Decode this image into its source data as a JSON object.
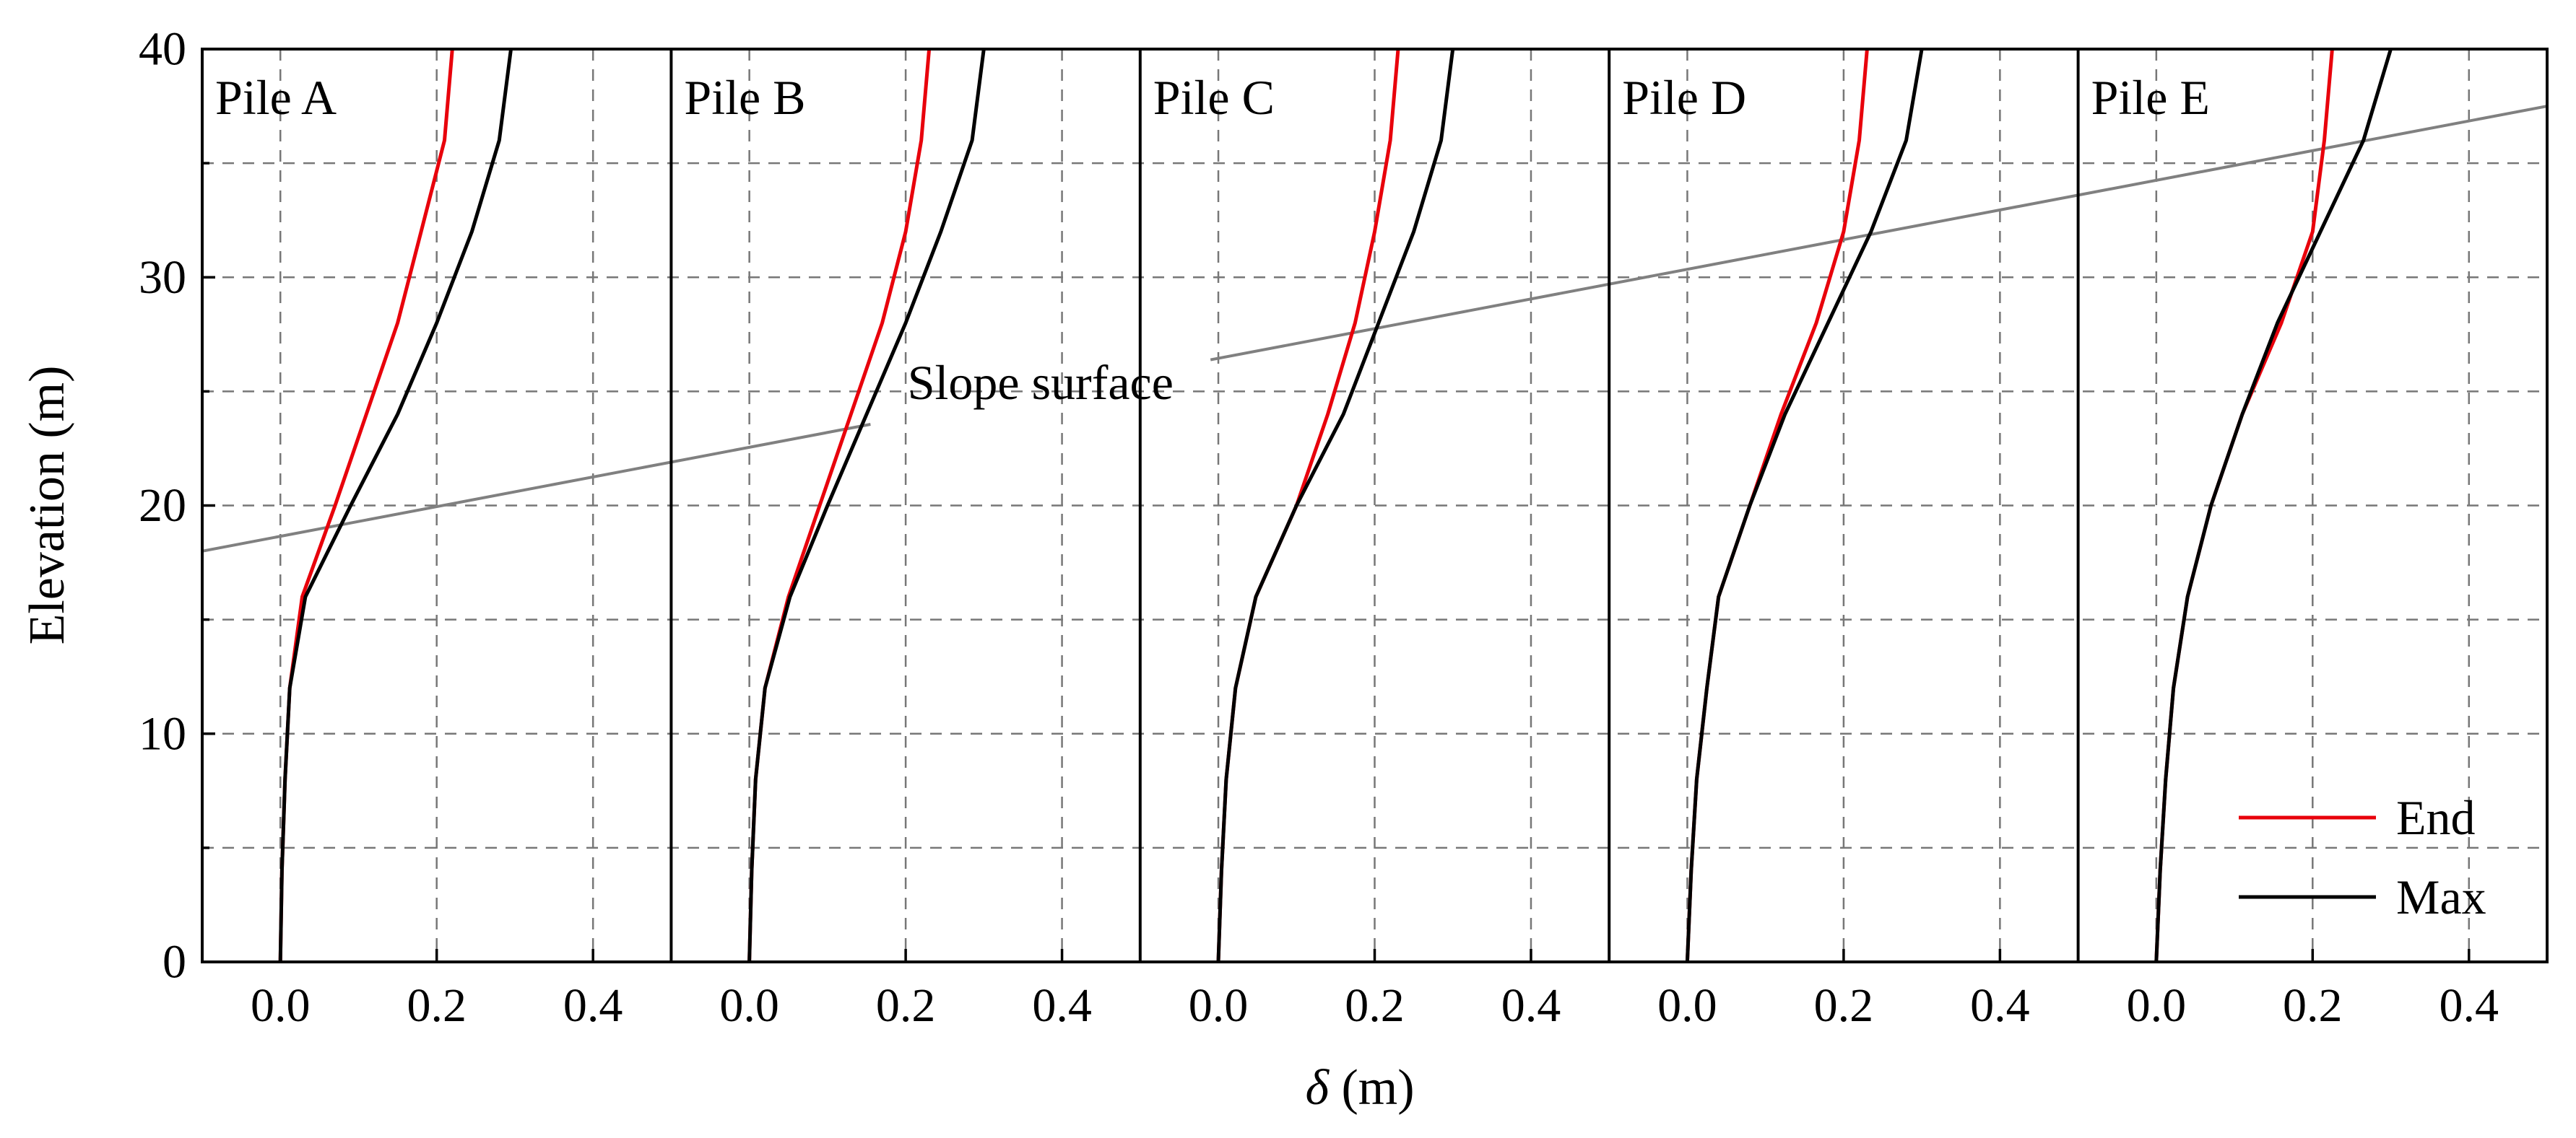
{
  "chart_data": {
    "type": "line",
    "xlabel_symbol": "δ",
    "xlabel_unit": " (m)",
    "ylabel": "Elevation (m)",
    "xlim": [
      -0.1,
      0.5
    ],
    "ylim": [
      0,
      40
    ],
    "xticks": [
      0.0,
      0.2,
      0.4
    ],
    "xtick_labels": [
      "0.0",
      "0.2",
      "0.4"
    ],
    "yticks": [
      0,
      10,
      20,
      30,
      40
    ],
    "ytick_labels": [
      "0",
      "10",
      "20",
      "30",
      "40"
    ],
    "ygrid": [
      5,
      10,
      15,
      20,
      25,
      30,
      35
    ],
    "grid": true,
    "legend": {
      "placement": "bottom-right",
      "entries": [
        {
          "name": "End",
          "color": "#e8000b"
        },
        {
          "name": "Max",
          "color": "#000000"
        }
      ]
    },
    "slope_surface": {
      "label": "Slope surface",
      "color": "#808080",
      "points": [
        [
          -0.1,
          18.0
        ],
        [
          2.9,
          37.5
        ]
      ],
      "label_gap_x": [
        0.755,
        1.19
      ]
    },
    "panels": [
      {
        "title": "Pile A",
        "series": [
          {
            "name": "End",
            "color": "#e8000b",
            "points": [
              [
                0.0,
                0
              ],
              [
                0.002,
                4
              ],
              [
                0.006,
                8
              ],
              [
                0.012,
                12
              ],
              [
                0.028,
                16
              ],
              [
                0.07,
                20
              ],
              [
                0.11,
                24
              ],
              [
                0.15,
                28
              ],
              [
                0.18,
                32
              ],
              [
                0.21,
                36
              ],
              [
                0.22,
                40
              ]
            ]
          },
          {
            "name": "Max",
            "color": "#000000",
            "points": [
              [
                0.0,
                0
              ],
              [
                0.002,
                4
              ],
              [
                0.006,
                8
              ],
              [
                0.012,
                12
              ],
              [
                0.032,
                16
              ],
              [
                0.09,
                20
              ],
              [
                0.15,
                24
              ],
              [
                0.2,
                28
              ],
              [
                0.245,
                32
              ],
              [
                0.28,
                36
              ],
              [
                0.295,
                40
              ]
            ]
          }
        ]
      },
      {
        "title": "Pile B",
        "series": [
          {
            "name": "End",
            "color": "#e8000b",
            "points": [
              [
                0.0,
                0
              ],
              [
                0.003,
                4
              ],
              [
                0.008,
                8
              ],
              [
                0.02,
                12
              ],
              [
                0.05,
                16
              ],
              [
                0.09,
                20
              ],
              [
                0.13,
                24
              ],
              [
                0.17,
                28
              ],
              [
                0.2,
                32
              ],
              [
                0.22,
                36
              ],
              [
                0.23,
                40
              ]
            ]
          },
          {
            "name": "Max",
            "color": "#000000",
            "points": [
              [
                0.0,
                0
              ],
              [
                0.003,
                4
              ],
              [
                0.008,
                8
              ],
              [
                0.02,
                12
              ],
              [
                0.052,
                16
              ],
              [
                0.1,
                20
              ],
              [
                0.15,
                24
              ],
              [
                0.2,
                28
              ],
              [
                0.245,
                32
              ],
              [
                0.285,
                36
              ],
              [
                0.3,
                40
              ]
            ]
          }
        ]
      },
      {
        "title": "Pile C",
        "series": [
          {
            "name": "End",
            "color": "#e8000b",
            "points": [
              [
                0.0,
                0
              ],
              [
                0.004,
                4
              ],
              [
                0.01,
                8
              ],
              [
                0.022,
                12
              ],
              [
                0.048,
                16
              ],
              [
                0.1,
                20
              ],
              [
                0.14,
                24
              ],
              [
                0.175,
                28
              ],
              [
                0.2,
                32
              ],
              [
                0.22,
                36
              ],
              [
                0.23,
                40
              ]
            ]
          },
          {
            "name": "Max",
            "color": "#000000",
            "points": [
              [
                0.0,
                0
              ],
              [
                0.004,
                4
              ],
              [
                0.01,
                8
              ],
              [
                0.022,
                12
              ],
              [
                0.048,
                16
              ],
              [
                0.1,
                20
              ],
              [
                0.16,
                24
              ],
              [
                0.205,
                28
              ],
              [
                0.25,
                32
              ],
              [
                0.285,
                36
              ],
              [
                0.3,
                40
              ]
            ]
          }
        ]
      },
      {
        "title": "Pile D",
        "series": [
          {
            "name": "End",
            "color": "#e8000b",
            "points": [
              [
                0.0,
                0
              ],
              [
                0.005,
                4
              ],
              [
                0.012,
                8
              ],
              [
                0.025,
                12
              ],
              [
                0.04,
                16
              ],
              [
                0.08,
                20
              ],
              [
                0.12,
                24
              ],
              [
                0.165,
                28
              ],
              [
                0.2,
                32
              ],
              [
                0.22,
                36
              ],
              [
                0.23,
                40
              ]
            ]
          },
          {
            "name": "Max",
            "color": "#000000",
            "points": [
              [
                0.0,
                0
              ],
              [
                0.005,
                4
              ],
              [
                0.012,
                8
              ],
              [
                0.025,
                12
              ],
              [
                0.04,
                16
              ],
              [
                0.08,
                20
              ],
              [
                0.125,
                24
              ],
              [
                0.18,
                28
              ],
              [
                0.235,
                32
              ],
              [
                0.28,
                36
              ],
              [
                0.3,
                40
              ]
            ]
          }
        ]
      },
      {
        "title": "Pile E",
        "series": [
          {
            "name": "End",
            "color": "#e8000b",
            "points": [
              [
                0.0,
                0
              ],
              [
                0.005,
                4
              ],
              [
                0.012,
                8
              ],
              [
                0.022,
                12
              ],
              [
                0.04,
                16
              ],
              [
                0.07,
                20
              ],
              [
                0.11,
                24
              ],
              [
                0.16,
                28
              ],
              [
                0.2,
                32
              ],
              [
                0.215,
                36
              ],
              [
                0.225,
                40
              ]
            ]
          },
          {
            "name": "Max",
            "color": "#000000",
            "points": [
              [
                0.0,
                0
              ],
              [
                0.005,
                4
              ],
              [
                0.012,
                8
              ],
              [
                0.022,
                12
              ],
              [
                0.04,
                16
              ],
              [
                0.07,
                20
              ],
              [
                0.11,
                24
              ],
              [
                0.155,
                28
              ],
              [
                0.21,
                32
              ],
              [
                0.265,
                36
              ],
              [
                0.3,
                40
              ]
            ]
          }
        ]
      }
    ]
  }
}
